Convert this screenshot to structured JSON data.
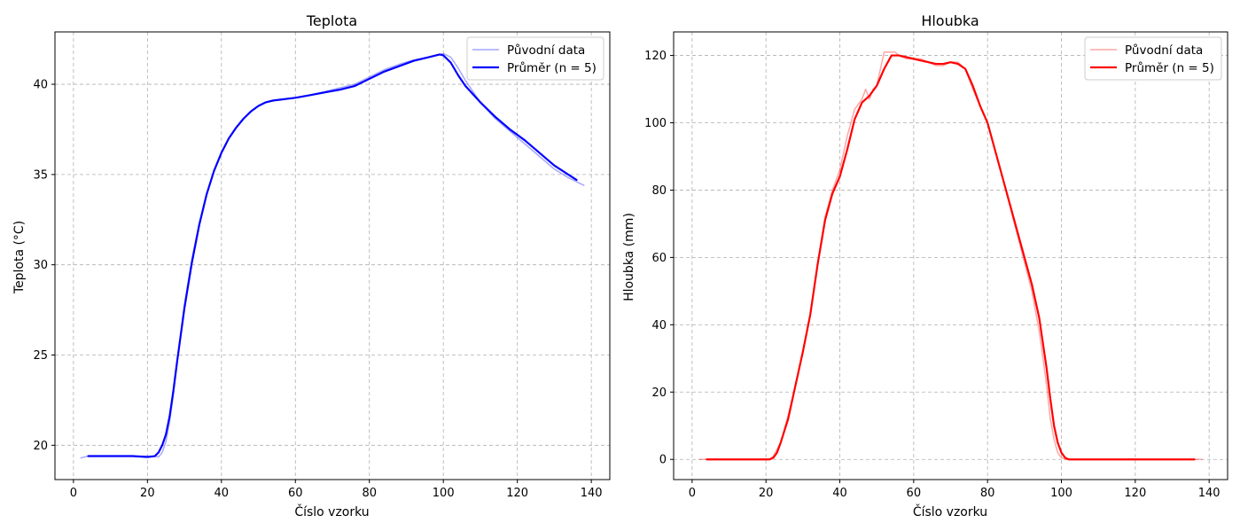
{
  "chart_data": [
    {
      "type": "line",
      "title": "Teplota",
      "xlabel": "Číslo vzorku",
      "ylabel": "Teplota (°C)",
      "xlim": [
        -5,
        145
      ],
      "ylim": [
        18.1,
        42.9
      ],
      "xticks": [
        0,
        20,
        40,
        60,
        80,
        100,
        120,
        140
      ],
      "yticks": [
        20,
        25,
        30,
        35,
        40
      ],
      "grid": true,
      "legend_position": "top-right",
      "legend": [
        "Původní data",
        "Průměr (n = 5)"
      ],
      "series": [
        {
          "name": "Původní data",
          "color": "#0000ff",
          "alpha": 0.35,
          "x": [
            2,
            4,
            6,
            10,
            15,
            20,
            22,
            23,
            24,
            25,
            26,
            27,
            28,
            30,
            32,
            34,
            36,
            38,
            40,
            42,
            44,
            46,
            48,
            50,
            52,
            54,
            56,
            58,
            60,
            64,
            68,
            72,
            76,
            80,
            84,
            88,
            92,
            96,
            100,
            102,
            104,
            106,
            110,
            114,
            118,
            122,
            126,
            130,
            134,
            138
          ],
          "y": [
            19.3,
            19.4,
            19.4,
            19.4,
            19.4,
            19.4,
            19.4,
            19.35,
            19.6,
            20.2,
            21.3,
            22.8,
            24.5,
            27.8,
            30.3,
            32.3,
            33.9,
            35.2,
            36.2,
            37.0,
            37.6,
            38.1,
            38.5,
            38.8,
            39.0,
            39.1,
            39.15,
            39.2,
            39.25,
            39.4,
            39.6,
            39.8,
            40.0,
            40.4,
            40.8,
            41.1,
            41.35,
            41.5,
            41.7,
            41.5,
            40.9,
            40.2,
            39.0,
            38.1,
            37.4,
            36.7,
            36.0,
            35.3,
            34.8,
            34.4
          ]
        },
        {
          "name": "Průměr (n = 5)",
          "color": "#0000ff",
          "alpha": 1,
          "x": [
            4,
            10,
            16,
            20,
            22,
            23,
            24,
            25,
            26,
            27,
            28,
            30,
            32,
            34,
            36,
            38,
            40,
            42,
            44,
            46,
            48,
            50,
            52,
            54,
            56,
            58,
            60,
            64,
            68,
            72,
            76,
            80,
            84,
            88,
            92,
            96,
            99,
            100,
            102,
            104,
            106,
            110,
            114,
            118,
            122,
            126,
            130,
            136
          ],
          "y": [
            19.4,
            19.4,
            19.4,
            19.35,
            19.4,
            19.6,
            20.0,
            20.6,
            21.6,
            23.0,
            24.6,
            27.6,
            30.1,
            32.2,
            33.9,
            35.2,
            36.2,
            37.0,
            37.6,
            38.1,
            38.5,
            38.8,
            39.0,
            39.1,
            39.15,
            39.2,
            39.25,
            39.4,
            39.55,
            39.7,
            39.9,
            40.3,
            40.7,
            41.0,
            41.3,
            41.5,
            41.65,
            41.6,
            41.2,
            40.5,
            39.9,
            39.0,
            38.2,
            37.5,
            36.9,
            36.2,
            35.5,
            34.7
          ]
        }
      ]
    },
    {
      "type": "line",
      "title": "Hloubka",
      "xlabel": "Číslo vzorku",
      "ylabel": "Hloubka (mm)",
      "xlim": [
        -5,
        145
      ],
      "ylim": [
        -6,
        127
      ],
      "xticks": [
        0,
        20,
        40,
        60,
        80,
        100,
        120,
        140
      ],
      "yticks": [
        0,
        20,
        40,
        60,
        80,
        100,
        120
      ],
      "grid": true,
      "legend_position": "top-right",
      "legend": [
        "Původní data",
        "Průměr (n = 5)"
      ],
      "series": [
        {
          "name": "Původní data",
          "color": "#ff0000",
          "alpha": 0.35,
          "x": [
            2,
            10,
            20,
            21,
            22,
            24,
            26,
            28,
            30,
            32,
            34,
            36,
            38,
            40,
            42,
            44,
            46,
            47,
            48,
            49,
            50,
            51,
            52,
            53,
            54,
            55,
            56,
            58,
            60,
            62,
            64,
            66,
            68,
            70,
            72,
            74,
            76,
            78,
            80,
            84,
            88,
            92,
            94,
            96,
            97,
            98,
            99,
            100,
            101,
            102,
            110,
            138
          ],
          "y": [
            0,
            0,
            0,
            0,
            1,
            5,
            13,
            22,
            32,
            43,
            58,
            72,
            80,
            86,
            96,
            104,
            107,
            110,
            107,
            110,
            111,
            116,
            121,
            121,
            121,
            121,
            120,
            119,
            119,
            119,
            118,
            117,
            117,
            118,
            118,
            116,
            110,
            105,
            100,
            84,
            67,
            50,
            38,
            22,
            12,
            6,
            2,
            0.5,
            0,
            0,
            0,
            0
          ]
        },
        {
          "name": "Průměr (n = 5)",
          "color": "#ff0000",
          "alpha": 1,
          "x": [
            4,
            10,
            20,
            21,
            22,
            23,
            24,
            26,
            28,
            30,
            32,
            34,
            36,
            38,
            40,
            42,
            44,
            46,
            48,
            50,
            52,
            54,
            56,
            58,
            60,
            62,
            64,
            66,
            68,
            70,
            72,
            74,
            76,
            78,
            80,
            84,
            88,
            92,
            94,
            96,
            97,
            98,
            99,
            100,
            101,
            102,
            110,
            136
          ],
          "y": [
            0,
            0,
            0,
            0,
            0.5,
            2,
            5,
            12,
            22,
            32,
            43,
            58,
            71,
            79,
            84,
            92,
            101,
            106,
            108,
            111,
            116,
            120,
            120,
            119.5,
            119,
            118.5,
            118,
            117.5,
            117.5,
            118,
            117.5,
            116,
            111,
            105,
            100,
            84,
            68,
            52,
            42,
            27,
            18,
            10,
            5,
            2,
            0.5,
            0,
            0,
            0
          ]
        }
      ]
    }
  ]
}
